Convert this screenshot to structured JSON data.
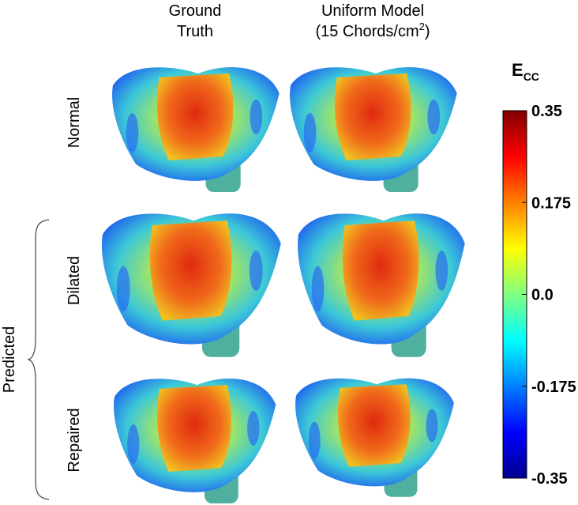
{
  "header": {
    "ground_truth": [
      "Ground",
      "Truth"
    ],
    "uniform_model": {
      "line1": "Uniform Model",
      "line2": "(15 Chords/cm",
      "sup": "2",
      "close": ")"
    }
  },
  "rows": [
    "Normal",
    "Dilated",
    "Repaired"
  ],
  "group_label": "Predicted",
  "colorbar": {
    "symbol": "E",
    "subscript": "CC",
    "range": [
      -0.35,
      0.35
    ],
    "ticks": [
      0.35,
      0.175,
      {
        "value": 0,
        "label": "0.0"
      },
      -0.175,
      -0.35
    ]
  }
}
